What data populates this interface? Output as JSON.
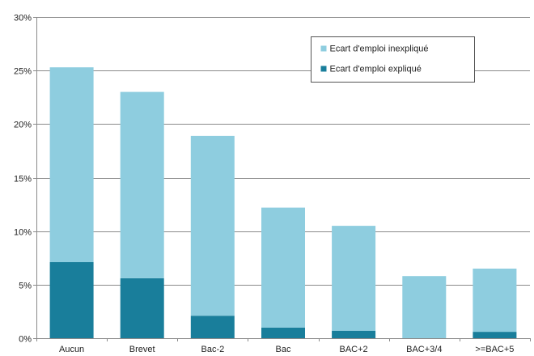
{
  "chart_data": {
    "type": "bar",
    "stacked": true,
    "title": "",
    "xlabel": "",
    "ylabel": "",
    "categories": [
      "Aucun",
      "Brevet",
      "Bac-2",
      "Bac",
      "BAC+2",
      "BAC+3/4",
      ">=BAC+5"
    ],
    "series": [
      {
        "name": "Ecart d'emploi expliqué",
        "color": "#197e9b",
        "values": [
          7.1,
          5.6,
          2.1,
          1.0,
          0.7,
          0.0,
          0.6
        ]
      },
      {
        "name": "Ecart d'emploi inexpliqué",
        "color": "#8ecddf",
        "values": [
          18.2,
          17.4,
          16.8,
          11.2,
          9.8,
          5.8,
          5.9
        ]
      }
    ],
    "ylim": [
      0,
      30
    ],
    "yticks": [
      0,
      5,
      10,
      15,
      20,
      25,
      30
    ],
    "ytick_labels": [
      "0%",
      "5%",
      "10%",
      "15%",
      "20%",
      "25%",
      "30%"
    ],
    "grid": true,
    "legend": {
      "position": "top-right",
      "order": [
        "Ecart d'emploi inexpliqué",
        "Ecart d'emploi expliqué"
      ]
    }
  }
}
